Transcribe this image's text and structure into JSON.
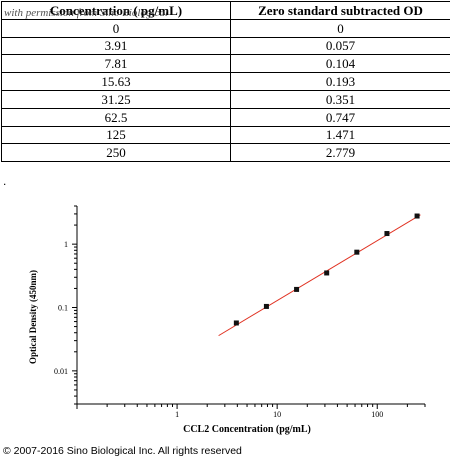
{
  "table": {
    "watermark": "with permission from Sino Biological",
    "headers": [
      "Concentration ( pg/mL)",
      "Zero standard subtracted OD"
    ],
    "rows": [
      [
        "0",
        "0"
      ],
      [
        "3.91",
        "0.057"
      ],
      [
        "7.81",
        "0.104"
      ],
      [
        "15.63",
        "0.193"
      ],
      [
        "31.25",
        "0.351"
      ],
      [
        "62.5",
        "0.747"
      ],
      [
        "125",
        "1.471"
      ],
      [
        "250",
        "2.779"
      ]
    ]
  },
  "separator": ".",
  "chart_data": {
    "type": "scatter",
    "xscale": "log",
    "yscale": "log",
    "xlabel": "CCL2 Concentration (pg/mL)",
    "ylabel": "Optical Density (450nm)",
    "xlim": [
      0.1,
      300
    ],
    "ylim": [
      0.003,
      4
    ],
    "x_ticks": [
      1,
      10,
      100
    ],
    "x_tick_labels": [
      "1",
      "10",
      "100"
    ],
    "y_ticks": [
      0.01,
      0.1,
      1
    ],
    "y_tick_labels": [
      "0.01",
      "0.1",
      "1"
    ],
    "grid": false,
    "series": [
      {
        "x": [
          3.91,
          7.81,
          15.63,
          31.25,
          62.5,
          125,
          250
        ],
        "y": [
          0.057,
          0.104,
          0.193,
          0.351,
          0.747,
          1.471,
          2.779
        ]
      }
    ],
    "fit_line": {
      "x": [
        2.6,
        270
      ],
      "y": [
        0.036,
        2.9
      ],
      "color": "#e03020"
    },
    "marker_color": "#111111"
  },
  "footer": {
    "copyright": "© 2007-2016 Sino Biological Inc. All rights reserved"
  }
}
